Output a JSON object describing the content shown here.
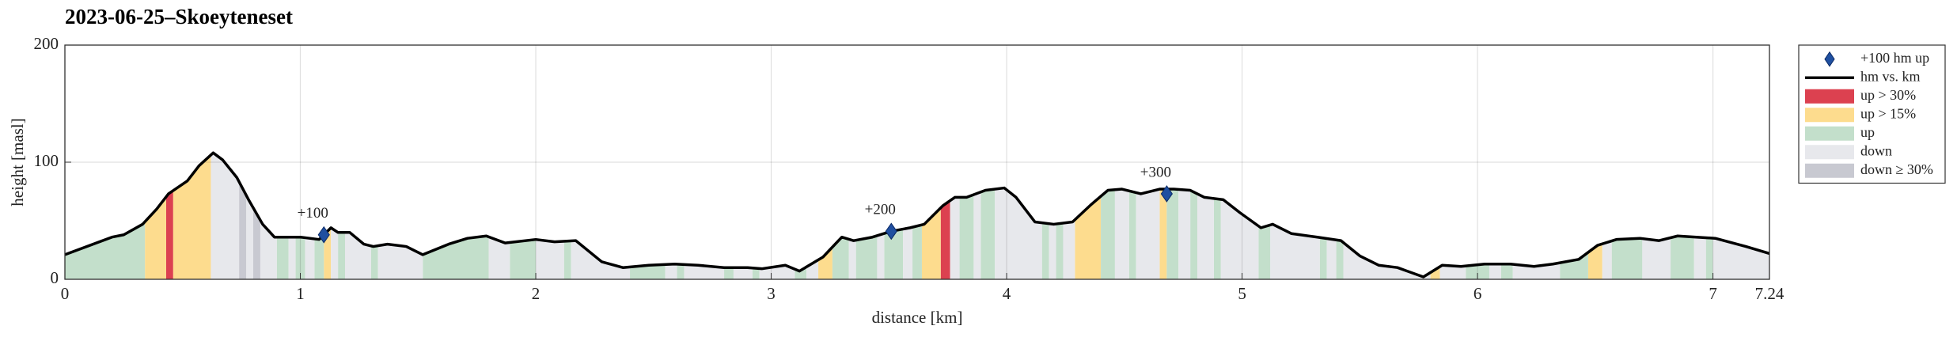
{
  "chart_data": {
    "type": "elevation-profile",
    "title": "2023-06-25–Skoeyteneset",
    "xlabel": "distance [km]",
    "ylabel": "height [masl]",
    "xlim": [
      0,
      7.24
    ],
    "ylim": [
      0,
      200
    ],
    "xticks": [
      0,
      1,
      2,
      3,
      4,
      5,
      6,
      7,
      7.24
    ],
    "yticks": [
      0,
      100,
      200
    ],
    "grid": true,
    "legend": "outside-right",
    "markers": {
      "name": "+100 hm up",
      "color": "#1f4fa0",
      "x": [
        1.1,
        3.51,
        4.68
      ],
      "y": [
        38,
        41,
        73
      ],
      "labels": [
        "+100",
        "+200",
        "+300"
      ]
    },
    "line": {
      "name": "hm vs. km",
      "color": "#000000",
      "x": [
        0,
        0.2,
        0.25,
        0.33,
        0.39,
        0.44,
        0.52,
        0.57,
        0.63,
        0.67,
        0.73,
        0.78,
        0.84,
        0.89,
        1.0,
        1.08,
        1.13,
        1.16,
        1.21,
        1.27,
        1.31,
        1.37,
        1.45,
        1.52,
        1.63,
        1.71,
        1.79,
        1.87,
        2.0,
        2.08,
        2.17,
        2.28,
        2.37,
        2.48,
        2.59,
        2.69,
        2.8,
        2.9,
        2.96,
        3.06,
        3.12,
        3.22,
        3.3,
        3.35,
        3.43,
        3.51,
        3.59,
        3.65,
        3.73,
        3.78,
        3.83,
        3.91,
        3.99,
        4.04,
        4.12,
        4.2,
        4.28,
        4.36,
        4.43,
        4.49,
        4.57,
        4.65,
        4.71,
        4.78,
        4.84,
        4.92,
        4.99,
        5.08,
        5.13,
        5.21,
        5.32,
        5.42,
        5.5,
        5.58,
        5.66,
        5.77,
        5.85,
        5.93,
        6.03,
        6.14,
        6.24,
        6.32,
        6.43,
        6.51,
        6.59,
        6.69,
        6.77,
        6.85,
        6.93,
        7.01,
        7.14,
        7.24
      ],
      "y": [
        21,
        36,
        38,
        47,
        60,
        73,
        84,
        97,
        108,
        102,
        87,
        68,
        47,
        36,
        36,
        34,
        44,
        40,
        40,
        30,
        28,
        30,
        28,
        21,
        30,
        35,
        37,
        31,
        34,
        32,
        33,
        15,
        10,
        12,
        13,
        12,
        10,
        10,
        9,
        12,
        7,
        19,
        36,
        33,
        36,
        41,
        44,
        47,
        63,
        70,
        70,
        76,
        78,
        70,
        49,
        47,
        49,
        64,
        76,
        77,
        73,
        77,
        77,
        76,
        70,
        68,
        57,
        44,
        47,
        39,
        36,
        33,
        20,
        12,
        10,
        2,
        12,
        11,
        13,
        13,
        11,
        13,
        17,
        29,
        34,
        35,
        33,
        37,
        36,
        35,
        28,
        22
      ]
    },
    "areas": [
      {
        "name": "up > 30%",
        "color": "#dc4150",
        "ranges": [
          [
            0.43,
            0.46
          ],
          [
            3.72,
            3.76
          ]
        ]
      },
      {
        "name": "up > 15%",
        "color": "#fddc8e",
        "ranges": [
          [
            0.34,
            0.43
          ],
          [
            0.46,
            0.62
          ],
          [
            1.1,
            1.13
          ],
          [
            3.2,
            3.26
          ],
          [
            3.64,
            3.72
          ],
          [
            4.29,
            4.4
          ],
          [
            4.65,
            4.68
          ],
          [
            5.8,
            5.84
          ],
          [
            6.47,
            6.53
          ]
        ]
      },
      {
        "name": "up",
        "color": "#c3dfcb",
        "ranges": [
          [
            0,
            0.34
          ],
          [
            0.9,
            0.95
          ],
          [
            0.98,
            1.02
          ],
          [
            1.06,
            1.1
          ],
          [
            1.16,
            1.19
          ],
          [
            1.3,
            1.33
          ],
          [
            1.52,
            1.8
          ],
          [
            1.89,
            2.0
          ],
          [
            2.12,
            2.15
          ],
          [
            2.4,
            2.55
          ],
          [
            2.6,
            2.63
          ],
          [
            2.8,
            2.84
          ],
          [
            2.92,
            2.95
          ],
          [
            3.1,
            3.15
          ],
          [
            3.26,
            3.33
          ],
          [
            3.36,
            3.45
          ],
          [
            3.48,
            3.56
          ],
          [
            3.6,
            3.64
          ],
          [
            3.8,
            3.86
          ],
          [
            3.89,
            3.95
          ],
          [
            4.15,
            4.18
          ],
          [
            4.21,
            4.24
          ],
          [
            4.4,
            4.46
          ],
          [
            4.52,
            4.55
          ],
          [
            4.68,
            4.73
          ],
          [
            4.78,
            4.81
          ],
          [
            4.88,
            4.91
          ],
          [
            5.07,
            5.12
          ],
          [
            5.33,
            5.36
          ],
          [
            5.4,
            5.43
          ],
          [
            5.95,
            6.05
          ],
          [
            6.1,
            6.15
          ],
          [
            6.35,
            6.47
          ],
          [
            6.57,
            6.7
          ],
          [
            6.82,
            6.92
          ],
          [
            6.97,
            7.0
          ]
        ]
      },
      {
        "name": "down",
        "color": "#e7e8ec",
        "ranges": [
          [
            0.62,
            0.74
          ],
          [
            0.77,
            0.8
          ],
          [
            0.83,
            0.9
          ],
          [
            0.95,
            0.98
          ],
          [
            1.02,
            1.06
          ],
          [
            1.13,
            1.16
          ],
          [
            1.19,
            1.3
          ],
          [
            1.33,
            1.52
          ],
          [
            1.8,
            1.89
          ],
          [
            2.0,
            2.12
          ],
          [
            2.15,
            2.4
          ],
          [
            2.55,
            2.6
          ],
          [
            2.63,
            2.8
          ],
          [
            2.84,
            2.92
          ],
          [
            2.95,
            3.1
          ],
          [
            3.15,
            3.2
          ],
          [
            3.33,
            3.36
          ],
          [
            3.45,
            3.48
          ],
          [
            3.56,
            3.6
          ],
          [
            3.76,
            3.8
          ],
          [
            3.86,
            3.89
          ],
          [
            3.95,
            4.15
          ],
          [
            4.18,
            4.21
          ],
          [
            4.24,
            4.29
          ],
          [
            4.46,
            4.52
          ],
          [
            4.55,
            4.65
          ],
          [
            4.73,
            4.78
          ],
          [
            4.81,
            4.88
          ],
          [
            4.91,
            5.07
          ],
          [
            5.12,
            5.33
          ],
          [
            5.36,
            5.4
          ],
          [
            5.43,
            5.8
          ],
          [
            5.84,
            5.95
          ],
          [
            6.05,
            6.1
          ],
          [
            6.15,
            6.35
          ],
          [
            6.53,
            6.57
          ],
          [
            6.7,
            6.82
          ],
          [
            6.92,
            6.97
          ],
          [
            7.0,
            7.24
          ]
        ]
      },
      {
        "name": "down ≥ 30%",
        "color": "#c8c9d1",
        "ranges": [
          [
            0.74,
            0.77
          ],
          [
            0.8,
            0.83
          ]
        ]
      }
    ]
  }
}
